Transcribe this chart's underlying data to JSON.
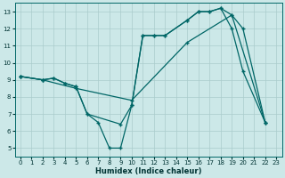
{
  "xlabel": "Humidex (Indice chaleur)",
  "bg_color": "#cce8e8",
  "grid_color": "#aacccc",
  "line_color": "#006666",
  "xlim": [
    -0.5,
    23.5
  ],
  "ylim": [
    4.5,
    13.5
  ],
  "xticks": [
    0,
    1,
    2,
    3,
    4,
    5,
    6,
    7,
    8,
    9,
    10,
    11,
    12,
    13,
    14,
    15,
    16,
    17,
    18,
    19,
    20,
    21,
    22,
    23
  ],
  "yticks": [
    5,
    6,
    7,
    8,
    9,
    10,
    11,
    12,
    13
  ],
  "line1_x": [
    0,
    2,
    3,
    4,
    5,
    6,
    9,
    10,
    11,
    12,
    13,
    15,
    16,
    17,
    18,
    19,
    22
  ],
  "line1_y": [
    9.2,
    9.0,
    9.1,
    8.8,
    8.6,
    7.0,
    6.4,
    7.5,
    11.6,
    11.6,
    11.6,
    12.5,
    13.0,
    13.0,
    13.2,
    12.8,
    6.5
  ],
  "line2_x": [
    0,
    2,
    3,
    4,
    5,
    6,
    7,
    8,
    9,
    10,
    11,
    12,
    13,
    15,
    16,
    17,
    18,
    19,
    20,
    22
  ],
  "line2_y": [
    9.2,
    9.0,
    9.1,
    8.8,
    8.6,
    7.0,
    6.5,
    5.0,
    5.0,
    7.5,
    11.6,
    11.6,
    11.6,
    12.5,
    13.0,
    13.0,
    13.2,
    12.0,
    9.5,
    6.5
  ],
  "line3_x": [
    0,
    2,
    5,
    10,
    15,
    19,
    20,
    22
  ],
  "line3_y": [
    9.2,
    9.0,
    8.5,
    7.8,
    11.2,
    12.8,
    12.0,
    6.5
  ]
}
